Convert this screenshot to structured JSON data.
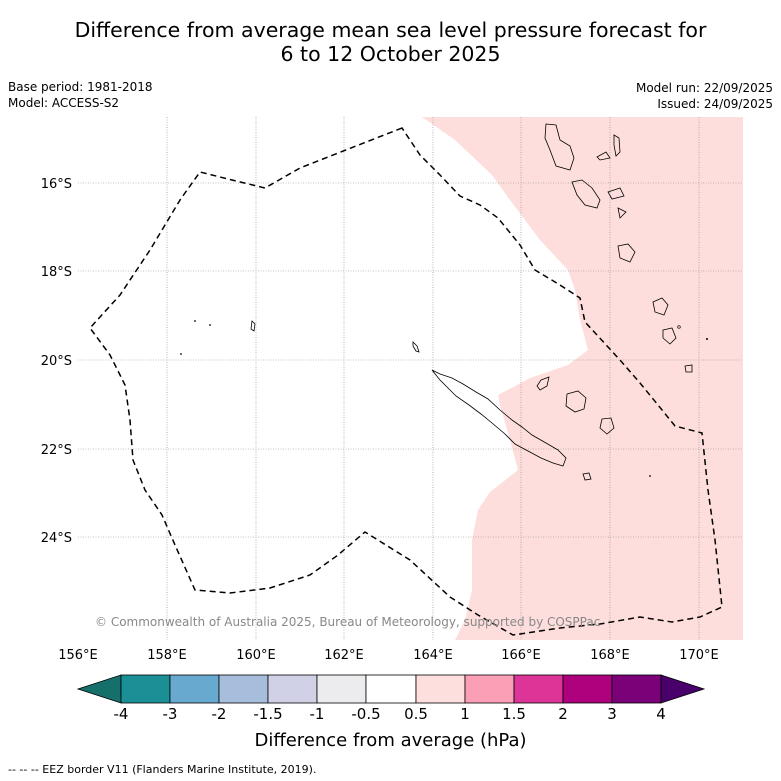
{
  "title": {
    "line1": "Difference from average mean sea level pressure forecast for",
    "line2": "6 to 12 October 2025"
  },
  "meta": {
    "base_period": "Base period: 1981-2018",
    "model": "Model: ACCESS-S2",
    "model_run": "Model run: 22/09/2025",
    "issued": "Issued: 24/09/2025"
  },
  "map": {
    "lat_labels": [
      "16°S",
      "18°S",
      "20°S",
      "22°S",
      "24°S"
    ],
    "lon_labels": [
      "156°E",
      "158°E",
      "160°E",
      "162°E",
      "164°E",
      "166°E",
      "168°E",
      "170°E"
    ],
    "anomaly_fill_color": "#fddedc",
    "anomaly_category": "0.5 to 1",
    "copyright": "© Commonwealth of Australia 2025, Bureau of Meteorology, supported by COSPPac"
  },
  "colorbar": {
    "title": "Difference from average (hPa)",
    "ticks": [
      "-4",
      "-3",
      "-2",
      "-1.5",
      "-1",
      "-0.5",
      "0.5",
      "1",
      "1.5",
      "2",
      "3",
      "4"
    ],
    "colors": [
      "#15706b",
      "#1a8f95",
      "#67a9cf",
      "#a6bddb",
      "#d0d1e6",
      "#ececef",
      "#ffffff",
      "#fde0dd",
      "#fa9fb5",
      "#dd3497",
      "#ae017e",
      "#7a0177",
      "#49006a"
    ]
  },
  "footnote": "--  --  -- EEZ border V11 (Flanders Marine Institute, 2019)."
}
